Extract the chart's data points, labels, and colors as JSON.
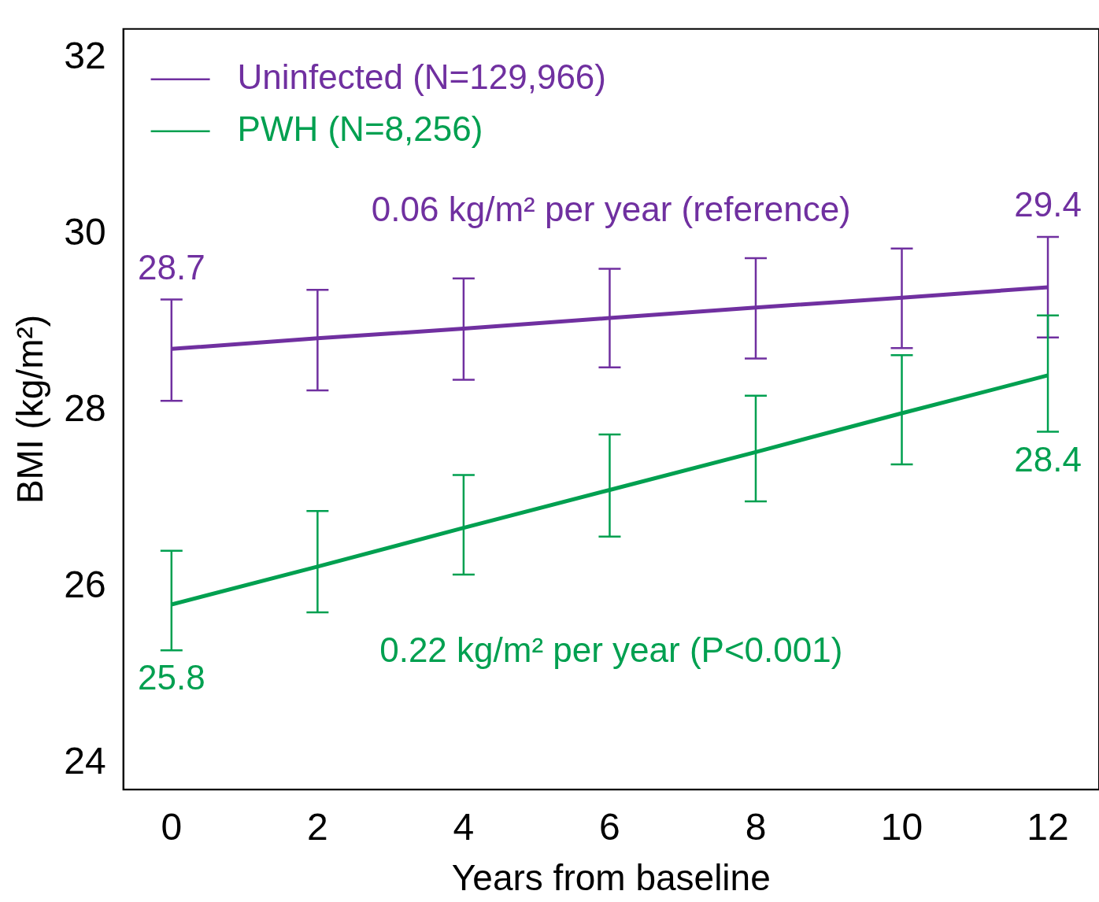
{
  "chart_data": {
    "type": "line",
    "xlabel": "Years from baseline",
    "ylabel": "BMI (kg/m²)",
    "x": [
      0,
      2,
      4,
      6,
      8,
      10,
      12
    ],
    "series": [
      {
        "name": "Uninfected (N=129,966)",
        "color": "#7030a0",
        "values": [
          28.7,
          28.82,
          28.93,
          29.05,
          29.17,
          29.28,
          29.4
        ],
        "errors": [
          [
            28.11,
            29.26
          ],
          [
            28.23,
            29.37
          ],
          [
            28.35,
            29.5
          ],
          [
            28.49,
            29.61
          ],
          [
            28.59,
            29.73
          ],
          [
            28.71,
            29.84
          ],
          [
            28.83,
            29.97
          ]
        ],
        "value_labels": [
          "28.7",
          null,
          null,
          null,
          null,
          null,
          "29.4"
        ]
      },
      {
        "name": "PWH (N=8,256)",
        "color": "#00a050",
        "values": [
          25.8,
          26.23,
          26.67,
          27.1,
          27.53,
          27.97,
          28.4
        ],
        "errors": [
          [
            25.28,
            26.41
          ],
          [
            25.71,
            26.86
          ],
          [
            26.14,
            27.27
          ],
          [
            26.57,
            27.73
          ],
          [
            26.97,
            28.17
          ],
          [
            27.39,
            28.63
          ],
          [
            27.76,
            29.08
          ]
        ],
        "value_labels": [
          "25.8",
          null,
          null,
          null,
          null,
          null,
          "28.4"
        ]
      }
    ],
    "annotations": [
      "0.06 kg/m² per year (reference)",
      "0.22 kg/m² per year (P<0.001)"
    ],
    "xlim": [
      -0.66,
      12.7
    ],
    "ylim": [
      23.7,
      32.33
    ],
    "xticks": [
      0,
      2,
      4,
      6,
      8,
      10,
      12
    ],
    "yticks": [
      24,
      26,
      28,
      30,
      32
    ],
    "grid": false,
    "legend": "top left",
    "marker": "none",
    "line_style": "solid"
  }
}
